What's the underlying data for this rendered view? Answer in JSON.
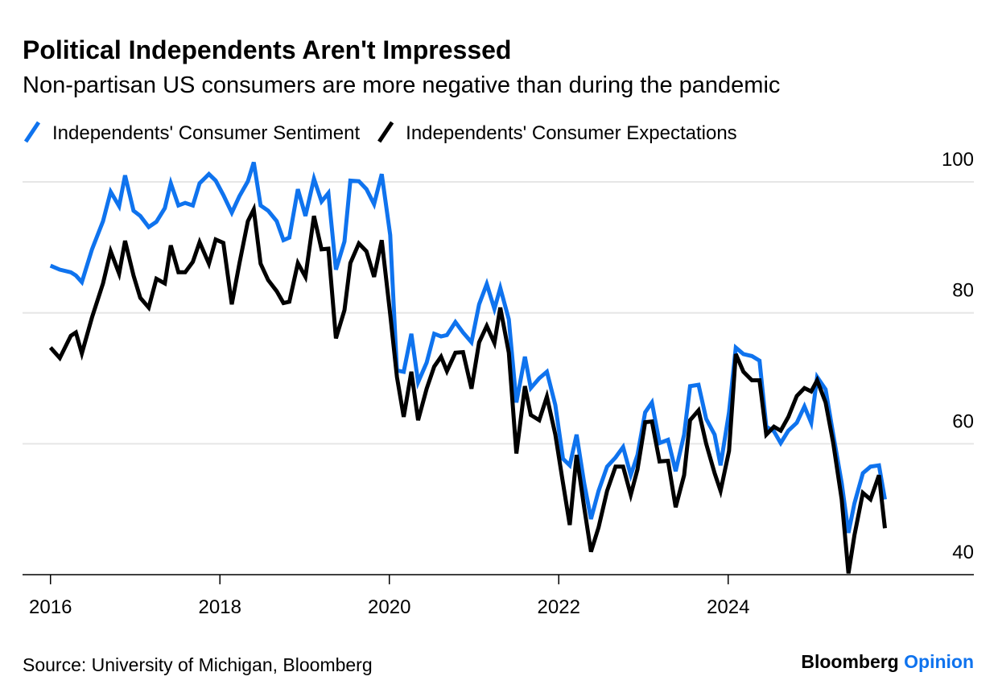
{
  "chart_data": {
    "type": "line",
    "title": "Political Independents Aren't Impressed",
    "subtitle": "Non-partisan US consumers are more negative than during the pandemic",
    "source": "Source: University of Michigan, Bloomberg",
    "brand": {
      "name": "Bloomberg",
      "section": "Opinion"
    },
    "x": [
      2016.0,
      2016.11,
      2016.24,
      2016.3,
      2016.37,
      2016.49,
      2016.62,
      2016.71,
      2016.81,
      2016.88,
      2016.98,
      2017.06,
      2017.16,
      2017.25,
      2017.35,
      2017.42,
      2017.51,
      2017.59,
      2017.68,
      2017.76,
      2017.87,
      2017.95,
      2018.04,
      2018.14,
      2018.23,
      2018.33,
      2018.4,
      2018.48,
      2018.57,
      2018.67,
      2018.75,
      2018.82,
      2018.92,
      2019.01,
      2019.11,
      2019.2,
      2019.28,
      2019.37,
      2019.47,
      2019.54,
      2019.64,
      2019.73,
      2019.82,
      2019.91,
      2020.01,
      2020.09,
      2020.17,
      2020.26,
      2020.34,
      2020.44,
      2020.53,
      2020.61,
      2020.68,
      2020.78,
      2020.87,
      2020.97,
      2021.06,
      2021.15,
      2021.24,
      2021.31,
      2021.41,
      2021.5,
      2021.6,
      2021.67,
      2021.77,
      2021.86,
      2021.96,
      2022.05,
      2022.13,
      2022.21,
      2022.3,
      2022.38,
      2022.47,
      2022.57,
      2022.67,
      2022.76,
      2022.85,
      2022.93,
      2023.02,
      2023.1,
      2023.19,
      2023.29,
      2023.38,
      2023.48,
      2023.55,
      2023.65,
      2023.74,
      2023.84,
      2023.91,
      2024.01,
      2024.09,
      2024.18,
      2024.28,
      2024.37,
      2024.45,
      2024.54,
      2024.62,
      2024.71,
      2024.81,
      2024.9,
      2024.98,
      2025.05,
      2025.15,
      2025.24,
      2025.34,
      2025.42,
      2025.49,
      2025.59,
      2025.68,
      2025.78,
      2025.85
    ],
    "series": [
      {
        "name": "Independents' Consumer Sentiment",
        "color": "#0f73ee",
        "values": [
          87.2,
          86.6,
          86.2,
          85.7,
          84.7,
          89.7,
          94,
          98.5,
          96.3,
          101,
          95.6,
          94.8,
          93.1,
          93.9,
          96,
          99.8,
          96.4,
          96.8,
          96.4,
          99.8,
          101.2,
          100.2,
          98,
          95.3,
          97.8,
          100.1,
          103,
          96.4,
          95.6,
          94,
          91.1,
          91.5,
          98.9,
          94.8,
          100.5,
          97,
          98.3,
          86.6,
          90.9,
          100.2,
          100.1,
          98.9,
          96.6,
          101.2,
          91.9,
          71.2,
          71,
          76.8,
          69.4,
          72.4,
          76.8,
          76.4,
          76.6,
          78.6,
          77,
          75.5,
          81.3,
          84.4,
          80.6,
          83.8,
          79,
          66.3,
          73.3,
          68.5,
          70,
          71,
          65.9,
          57.7,
          56.7,
          61.4,
          54,
          48.5,
          52.8,
          56.5,
          57.9,
          59.5,
          55.2,
          58.3,
          64.8,
          66.3,
          60.1,
          60.6,
          55.8,
          61.4,
          68.8,
          69,
          63.8,
          61.4,
          56.7,
          64.8,
          74.7,
          73.7,
          73.4,
          72.7,
          62.6,
          61.9,
          60.1,
          62,
          63.2,
          65.7,
          63.2,
          70.2,
          68.3,
          61.4,
          54,
          46.4,
          50.9,
          55.5,
          56.5,
          56.7,
          51.5
        ]
      },
      {
        "name": "Independents' Consumer Expectations",
        "color": "#000000",
        "values": [
          74.7,
          73.1,
          76.5,
          77,
          73.8,
          79.3,
          84.5,
          89.4,
          86,
          91,
          85.7,
          82.3,
          80.8,
          85.2,
          84.5,
          90.3,
          86.2,
          86.2,
          87.8,
          90.8,
          87.5,
          91.2,
          90.7,
          81.3,
          87.5,
          94,
          95.8,
          87.5,
          85,
          83.3,
          81.5,
          81.7,
          87.6,
          85.5,
          94.8,
          89.7,
          89.8,
          76.1,
          80.4,
          87.6,
          90.6,
          89.4,
          85.5,
          91.1,
          79.8,
          70.2,
          64.1,
          71,
          63.6,
          68.4,
          71.8,
          73.3,
          71.1,
          73.9,
          74,
          68.4,
          75.5,
          78,
          75.4,
          80.8,
          73.9,
          58.5,
          68.8,
          64.4,
          63.6,
          67.2,
          61.4,
          54,
          47.6,
          58.3,
          50.3,
          43.5,
          47.2,
          52.8,
          56.5,
          56.5,
          52.2,
          56.1,
          63.3,
          63.4,
          57.3,
          57.4,
          50.3,
          55.2,
          63.6,
          65.1,
          60,
          55.5,
          52.8,
          58.9,
          73.7,
          71,
          69.7,
          69.7,
          61.4,
          62.6,
          62,
          64.1,
          67.3,
          68.5,
          68,
          69.7,
          66.3,
          60.1,
          51.5,
          40.2,
          46,
          52.5,
          51.5,
          55.2,
          47.1
        ]
      }
    ],
    "xlim": [
      2015.67,
      2026.9
    ],
    "xticks": [
      2016,
      2018,
      2020,
      2022,
      2024
    ],
    "ylim": [
      40,
      104
    ],
    "yticks": [
      40,
      60,
      80,
      100
    ],
    "grid": true
  }
}
